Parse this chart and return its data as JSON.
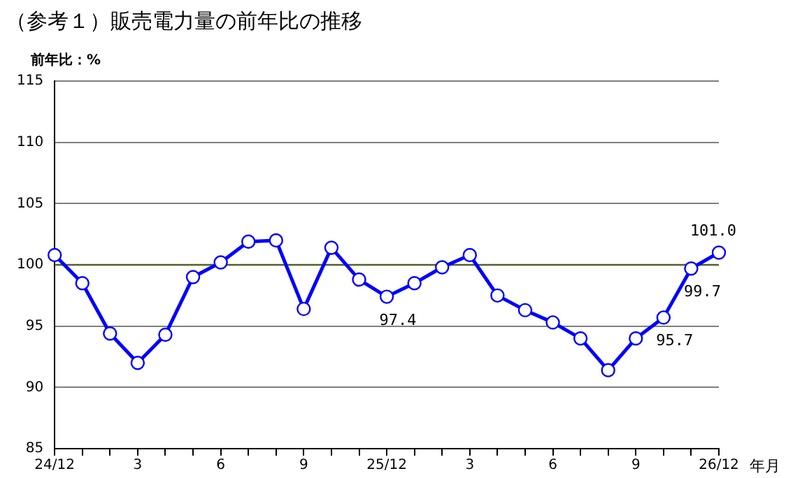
{
  "chart_data": {
    "type": "line",
    "title": "（参考１）販売電力量の前年比の推移",
    "ylabel": "前年比：%",
    "xlabel": "年月",
    "categories": [
      "24/12",
      null,
      null,
      "3",
      null,
      null,
      "6",
      null,
      null,
      "9",
      null,
      null,
      "25/12",
      null,
      null,
      "3",
      null,
      null,
      "6",
      null,
      null,
      "9",
      null,
      null,
      "26/12"
    ],
    "series": [
      {
        "color": "#0000ff",
        "values": [
          100.8,
          98.5,
          94.4,
          92.0,
          94.3,
          99.0,
          100.2,
          101.9,
          102.0,
          96.4,
          101.4,
          98.8,
          97.4,
          98.5,
          99.8,
          100.8,
          97.5,
          96.3,
          95.3,
          94.0,
          91.4,
          94.0,
          95.7,
          99.7,
          101.0
        ],
        "value_labels": [
          null,
          null,
          null,
          null,
          null,
          null,
          null,
          null,
          null,
          null,
          null,
          null,
          "97.4",
          null,
          null,
          null,
          null,
          null,
          null,
          null,
          null,
          null,
          "95.7",
          "99.7",
          "101.0"
        ]
      }
    ],
    "ylim": [
      85,
      115
    ],
    "yticks": [
      85,
      90,
      95,
      100,
      105,
      110,
      115
    ],
    "grid": "y",
    "marker": "circle",
    "line_style": "solid",
    "legend": false,
    "ref_lines": [
      {
        "axis": "y",
        "value": 100,
        "color": "#4f6228"
      }
    ]
  }
}
